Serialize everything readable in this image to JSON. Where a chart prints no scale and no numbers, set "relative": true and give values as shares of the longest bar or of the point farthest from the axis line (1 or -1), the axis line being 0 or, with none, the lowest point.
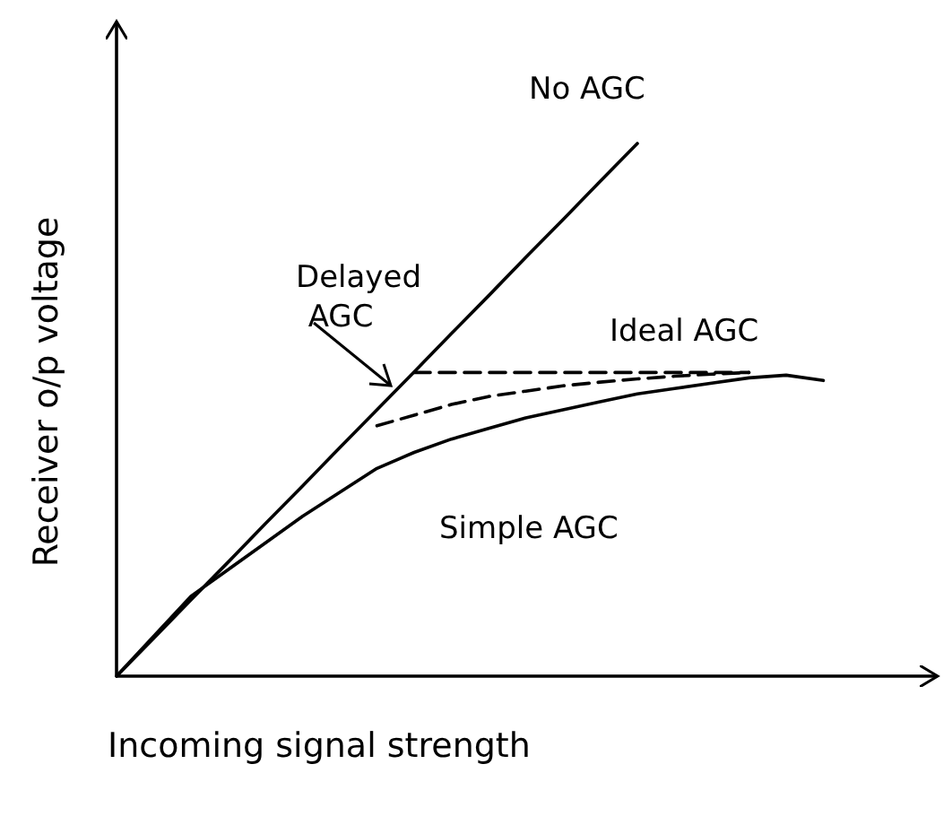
{
  "chart_data": {
    "type": "line",
    "relative": true,
    "xlabel": "Incoming signal strength",
    "ylabel": "Receiver o/p voltage",
    "marker": "none",
    "categories": [
      null,
      null,
      null,
      null,
      null,
      null,
      null,
      null,
      null,
      null,
      null,
      null,
      null,
      null,
      null,
      null,
      null,
      null,
      null,
      null,
      null
    ],
    "series": [
      {
        "name": "No AGC",
        "color": "#000000",
        "values": [
          0,
          0.071,
          0.143,
          0.214,
          0.286,
          0.357,
          0.429,
          0.5,
          0.571,
          0.643,
          0.714,
          0.786,
          0.857,
          0.929,
          1,
          null,
          null,
          null,
          null,
          null,
          null
        ],
        "line_style": "solid"
      },
      {
        "name": "Ideal AGC",
        "color": "#000000",
        "values": [
          null,
          null,
          null,
          null,
          null,
          null,
          null,
          null,
          0.57,
          0.57,
          0.57,
          0.57,
          0.57,
          0.57,
          0.57,
          0.57,
          0.57,
          0.57,
          null,
          null,
          null
        ],
        "line_style": "dashed"
      },
      {
        "name": "Delayed AGC",
        "color": "#000000",
        "values": [
          null,
          null,
          null,
          null,
          null,
          null,
          null,
          0.47,
          0.49,
          0.51,
          0.525,
          0.535,
          0.545,
          0.552,
          0.558,
          0.563,
          0.567,
          0.57,
          null,
          null,
          null
        ],
        "line_style": "dashed"
      },
      {
        "name": "Simple AGC",
        "color": "#000000",
        "values": [
          0,
          0.075,
          0.15,
          0.2,
          0.25,
          0.3,
          0.345,
          0.39,
          0.42,
          0.445,
          0.465,
          0.485,
          0.5,
          0.515,
          0.53,
          0.54,
          0.55,
          0.56,
          0.565,
          0.555,
          null
        ],
        "line_style": "solid"
      }
    ]
  }
}
